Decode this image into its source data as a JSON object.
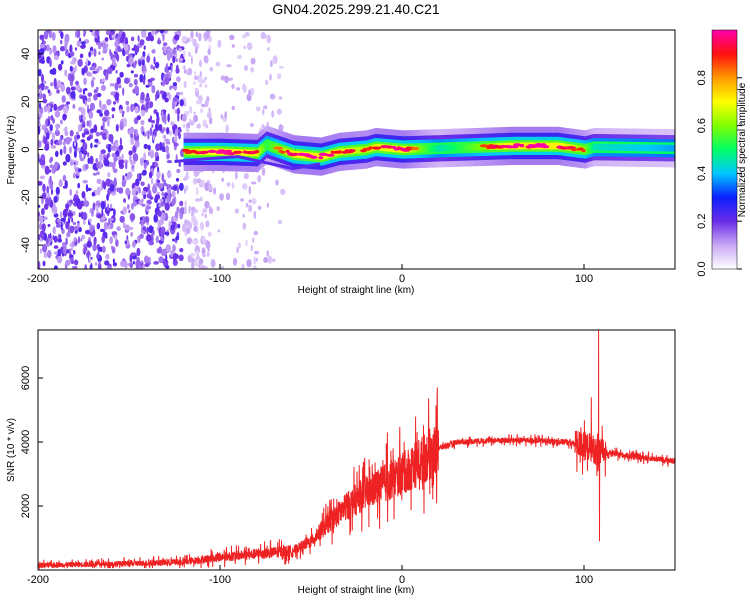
{
  "title": "GN04.2025.299.21.40.C21",
  "colors": {
    "snr_line": "#ee2222",
    "spectrogram_noise": "#7733ee",
    "axis": "#000000"
  },
  "chart_data": [
    {
      "type": "heatmap",
      "name": "spectrogram",
      "xlabel": "Height of straight line (km)",
      "ylabel": "Frequency (Hz)",
      "xlim": [
        -200,
        150
      ],
      "ylim": [
        -50,
        50
      ],
      "x_ticks": [
        -200,
        -100,
        0,
        100
      ],
      "x_tick_labels": [
        "-200",
        "-100",
        "0",
        "100"
      ],
      "y_ticks": [
        -40,
        -20,
        0,
        20,
        40
      ],
      "y_tick_labels": [
        "-40",
        "-20",
        "0",
        "20",
        "40"
      ],
      "colorbar": {
        "label": "Normalized spectral amplitude",
        "range": [
          0,
          1
        ],
        "ticks": [
          0.0,
          0.2,
          0.4,
          0.6,
          0.8
        ],
        "tick_labels": [
          "0.0",
          "0.2",
          "0.4",
          "0.6",
          "0.8"
        ]
      },
      "ridge": {
        "description_points_x": [
          -120,
          -100,
          -80,
          -75,
          -60,
          -45,
          -35,
          -20,
          -15,
          0,
          20,
          60,
          85,
          100,
          105,
          150
        ],
        "frequency_hz": [
          -1,
          -1,
          -1.5,
          2,
          -2,
          -3,
          -1,
          0,
          1,
          0,
          0.5,
          1.5,
          1.5,
          0,
          1,
          0.5
        ],
        "peak_amplitude": [
          0.85,
          0.95,
          0.9,
          0.7,
          0.95,
          0.95,
          0.9,
          0.85,
          0.9,
          0.95,
          0.6,
          0.95,
          0.95,
          0.8,
          0.6,
          0.5
        ]
      },
      "noise_region_x": [
        -200,
        -65
      ]
    },
    {
      "type": "line",
      "name": "snr",
      "xlabel": "Height of straight line (km)",
      "ylabel": "SNR (10 * v/v)",
      "xlim": [
        -200,
        150
      ],
      "ylim": [
        0,
        7500
      ],
      "x_ticks": [
        -200,
        -100,
        0,
        100
      ],
      "x_tick_labels": [
        "-200",
        "-100",
        "0",
        "100"
      ],
      "y_ticks": [
        2000,
        4000,
        6000
      ],
      "y_tick_labels": [
        "2000",
        "4000",
        "6000"
      ],
      "envelope": {
        "x": [
          -200,
          -150,
          -120,
          -100,
          -80,
          -60,
          -50,
          -40,
          -30,
          -20,
          -10,
          0,
          10,
          20,
          30,
          50,
          70,
          90,
          100,
          105,
          108,
          110,
          120,
          150
        ],
        "y": [
          150,
          200,
          250,
          400,
          500,
          600,
          900,
          1500,
          2000,
          2400,
          2700,
          3000,
          3400,
          3800,
          4000,
          4050,
          4050,
          4000,
          3900,
          3800,
          3600,
          3700,
          3600,
          3400
        ]
      },
      "spikes": [
        {
          "x": -8,
          "y": 4300
        },
        {
          "x": 104,
          "y": 5400
        },
        {
          "x": 108,
          "y": 7500
        },
        {
          "x": 108.5,
          "y": 900
        }
      ]
    }
  ]
}
